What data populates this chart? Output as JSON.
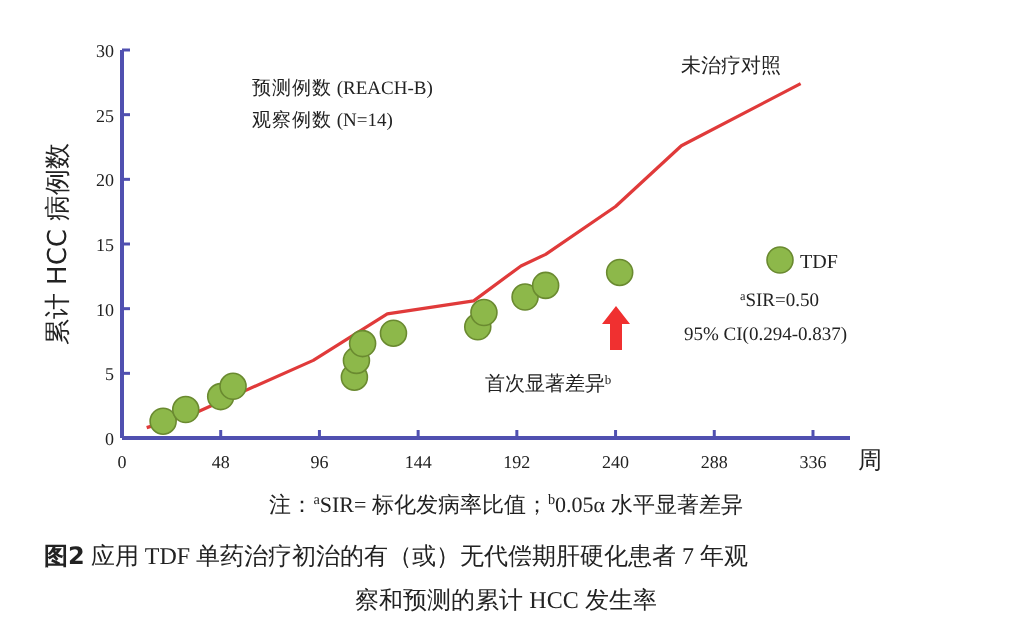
{
  "chart_data": {
    "type": "scatter",
    "title": "**图2** 应用 TDF 单药治疗初治的有（或）无代偿期肝硬化患者 7 年观察和预测的累计 HCC 发生率",
    "xlabel": "周",
    "ylabel": "累计 HCC 病例数",
    "xlim": [
      0,
      354
    ],
    "xticks": [
      0,
      48,
      96,
      144,
      192,
      240,
      288,
      336
    ],
    "ylim": [
      0,
      30
    ],
    "yticks": [
      0,
      5,
      10,
      15,
      20,
      25,
      30
    ],
    "grid": false,
    "legend": "right",
    "series": [
      {
        "name": "未治疗对照",
        "type": "line",
        "color": "#e03a3a",
        "x": [
          12,
          35,
          93,
          129,
          171,
          194,
          206,
          240,
          272,
          330
        ],
        "values": [
          0.8,
          1.9,
          6.0,
          9.6,
          10.6,
          13.3,
          14.2,
          17.9,
          22.6,
          27.4
        ]
      },
      {
        "name": "TDF",
        "marker": "circle",
        "color": "#8db84a",
        "x": [
          20,
          31,
          48,
          54,
          113,
          114,
          117,
          132,
          173,
          176,
          196,
          206,
          242
        ],
        "values": [
          1.3,
          2.2,
          3.2,
          4.0,
          4.7,
          6.0,
          7.3,
          8.1,
          8.6,
          9.7,
          10.9,
          11.8,
          12.8
        ]
      }
    ],
    "annotations": [
      "预测例数 (REACH-B)",
      "观察例数 (N=14)",
      "$^{a}$SIR=0.50",
      "95% CI(0.294-0.837)",
      "首次显著差异$^{b}$",
      "注：$^{a}$SIR= 标化发病率比值；$^{b}$0.05α 水平显著差异"
    ]
  }
}
